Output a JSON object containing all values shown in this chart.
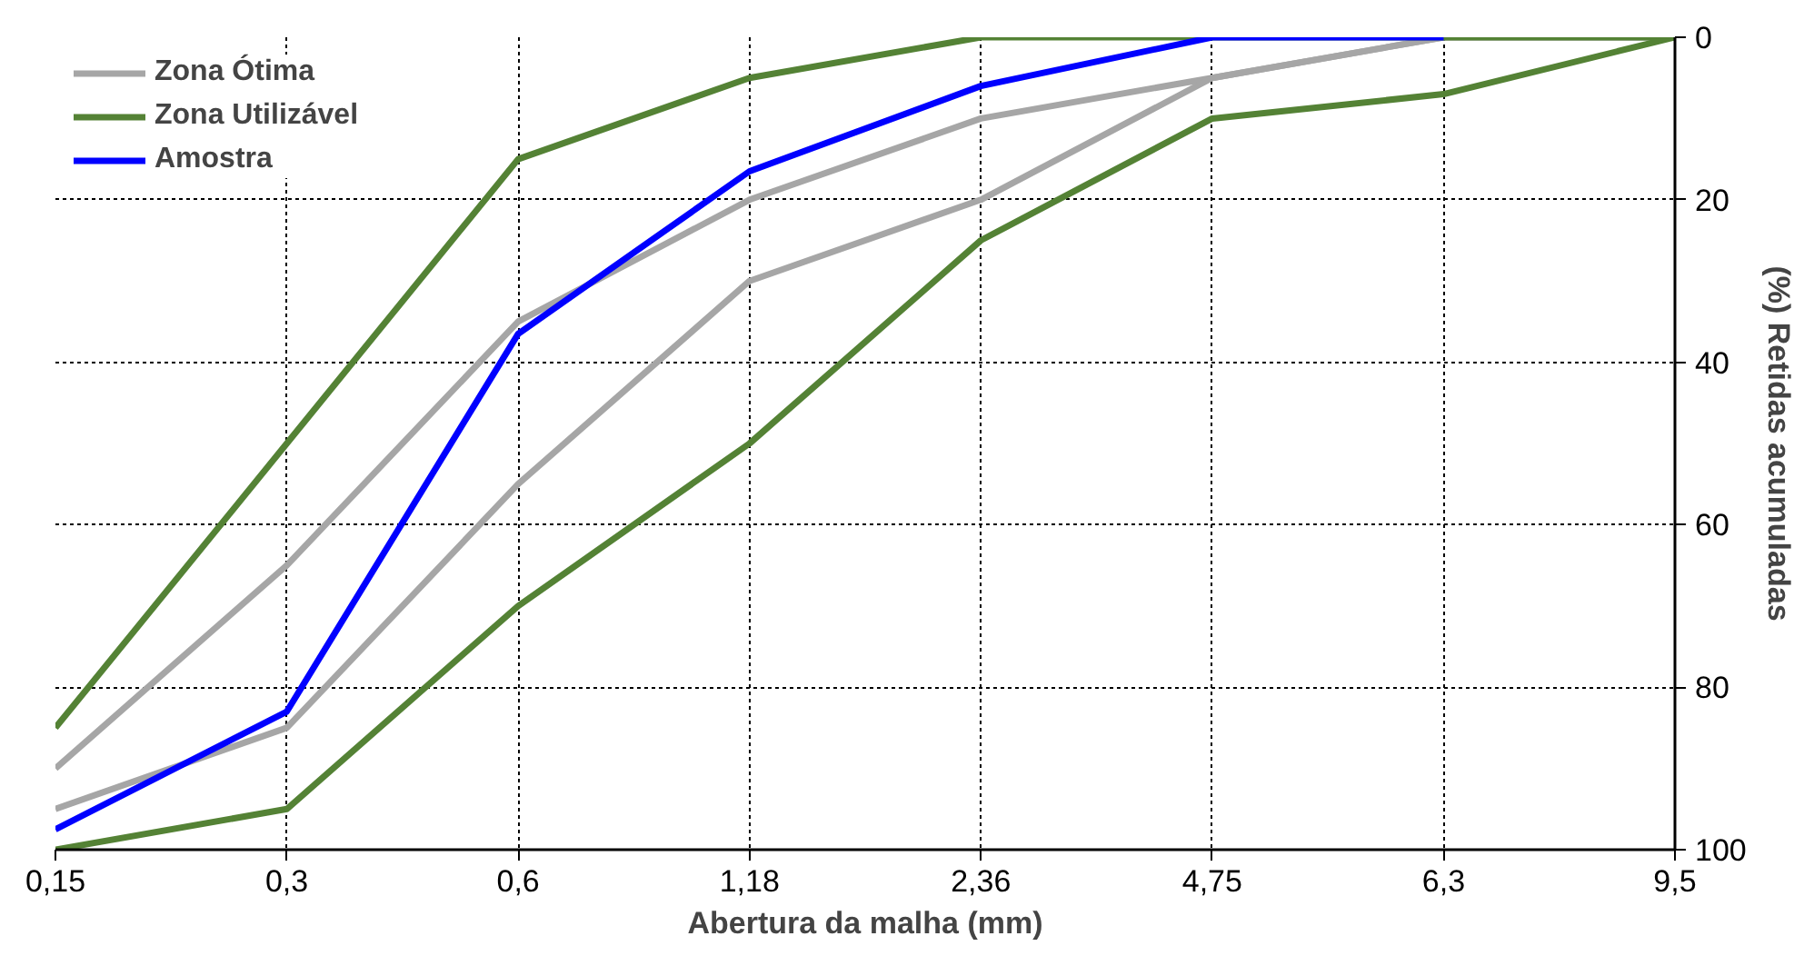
{
  "chart_data": {
    "type": "line",
    "xlabel": "Abertura da malha (mm)",
    "ylabel": "(%) Retidas acumuladas",
    "categories": [
      "0,15",
      "0,3",
      "0,6",
      "1,18",
      "2,36",
      "4,75",
      "6,3",
      "9,5"
    ],
    "ylim": [
      100,
      0
    ],
    "yticks": [
      0,
      20,
      40,
      60,
      80,
      100
    ],
    "grid": true,
    "legend": "top left",
    "marker": "none",
    "line_style": "solid",
    "series": [
      {
        "name": "Zona Ótima",
        "color": "#a6a6a6",
        "values": [
          90,
          65,
          35,
          20,
          10,
          5,
          0,
          0
        ]
      },
      {
        "color": "#a6a6a6",
        "values": [
          95,
          85,
          55,
          30,
          20,
          5,
          0,
          0
        ]
      },
      {
        "name": "Zona Utilizável",
        "color": "#548235",
        "values": [
          85,
          50,
          15,
          5,
          0,
          0,
          0,
          0
        ]
      },
      {
        "color": "#548235",
        "values": [
          100,
          95,
          70,
          50,
          25,
          10,
          7,
          0
        ]
      },
      {
        "name": "Amostra",
        "color": "#0000ff",
        "values": [
          97.5,
          83,
          36.5,
          16.5,
          6,
          0,
          0,
          null
        ]
      }
    ]
  }
}
